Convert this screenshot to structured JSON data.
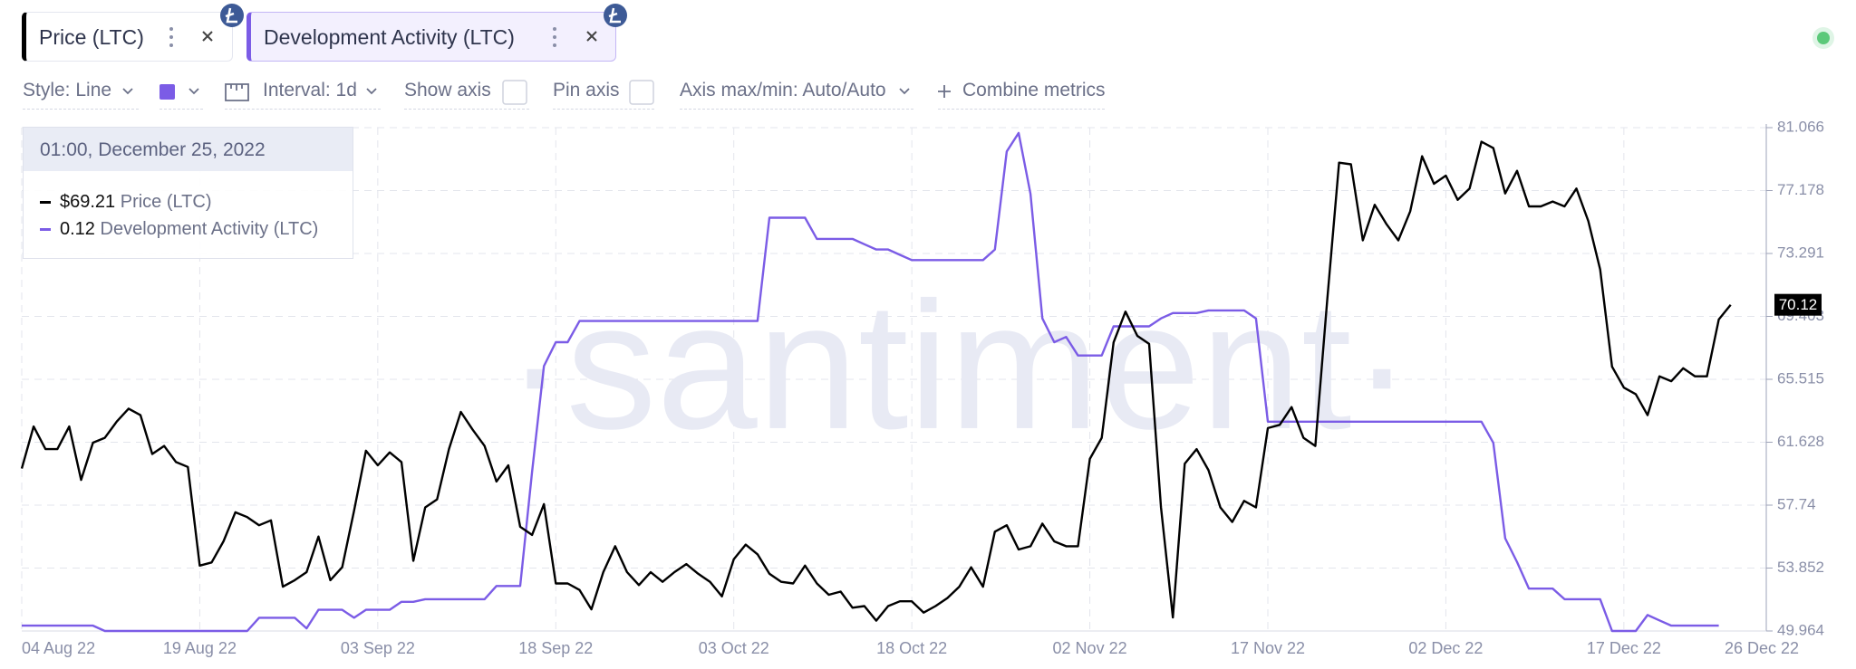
{
  "toolbar": {
    "style": "Style: Line",
    "interval": "Interval: 1d",
    "show_axis": "Show axis",
    "pin_axis": "Pin axis",
    "axis_range": "Axis max/min: Auto/Auto",
    "combine": "Combine metrics"
  },
  "watermark": "·santiment·",
  "tooltip": {
    "date": "01:00, December 25, 2022",
    "price_label": "$69.21"
  },
  "chart_data": {
    "type": "line",
    "x": [
      "2022-08-04",
      "2022-08-05",
      "2022-08-06",
      "2022-08-07",
      "2022-08-08",
      "2022-08-09",
      "2022-08-10",
      "2022-08-11",
      "2022-08-12",
      "2022-08-13",
      "2022-08-14",
      "2022-08-15",
      "2022-08-16",
      "2022-08-17",
      "2022-08-18",
      "2022-08-19",
      "2022-08-20",
      "2022-08-21",
      "2022-08-22",
      "2022-08-23",
      "2022-08-24",
      "2022-08-25",
      "2022-08-26",
      "2022-08-27",
      "2022-08-28",
      "2022-08-29",
      "2022-08-30",
      "2022-08-31",
      "2022-09-01",
      "2022-09-02",
      "2022-09-03",
      "2022-09-04",
      "2022-09-05",
      "2022-09-06",
      "2022-09-07",
      "2022-09-08",
      "2022-09-09",
      "2022-09-10",
      "2022-09-11",
      "2022-09-12",
      "2022-09-13",
      "2022-09-14",
      "2022-09-15",
      "2022-09-16",
      "2022-09-17",
      "2022-09-18",
      "2022-09-19",
      "2022-09-20",
      "2022-09-21",
      "2022-09-22",
      "2022-09-23",
      "2022-09-24",
      "2022-09-25",
      "2022-09-26",
      "2022-09-27",
      "2022-09-28",
      "2022-09-29",
      "2022-09-30",
      "2022-10-01",
      "2022-10-02",
      "2022-10-03",
      "2022-10-04",
      "2022-10-05",
      "2022-10-06",
      "2022-10-07",
      "2022-10-08",
      "2022-10-09",
      "2022-10-10",
      "2022-10-11",
      "2022-10-12",
      "2022-10-13",
      "2022-10-14",
      "2022-10-15",
      "2022-10-16",
      "2022-10-17",
      "2022-10-18",
      "2022-10-19",
      "2022-10-20",
      "2022-10-21",
      "2022-10-22",
      "2022-10-23",
      "2022-10-24",
      "2022-10-25",
      "2022-10-26",
      "2022-10-27",
      "2022-10-28",
      "2022-10-29",
      "2022-10-30",
      "2022-10-31",
      "2022-11-01",
      "2022-11-02",
      "2022-11-03",
      "2022-11-04",
      "2022-11-05",
      "2022-11-06",
      "2022-11-07",
      "2022-11-08",
      "2022-11-09",
      "2022-11-10",
      "2022-11-11",
      "2022-11-12",
      "2022-11-13",
      "2022-11-14",
      "2022-11-15",
      "2022-11-16",
      "2022-11-17",
      "2022-11-18",
      "2022-11-19",
      "2022-11-20",
      "2022-11-21",
      "2022-11-22",
      "2022-11-23",
      "2022-11-24",
      "2022-11-25",
      "2022-11-26",
      "2022-11-27",
      "2022-11-28",
      "2022-11-29",
      "2022-11-30",
      "2022-12-01",
      "2022-12-02",
      "2022-12-03",
      "2022-12-04",
      "2022-12-05",
      "2022-12-06",
      "2022-12-07",
      "2022-12-08",
      "2022-12-09",
      "2022-12-10",
      "2022-12-11",
      "2022-12-12",
      "2022-12-13",
      "2022-12-14",
      "2022-12-15",
      "2022-12-16",
      "2022-12-17",
      "2022-12-18",
      "2022-12-19",
      "2022-12-20",
      "2022-12-21",
      "2022-12-22",
      "2022-12-23",
      "2022-12-24",
      "2022-12-25",
      "2022-12-26"
    ],
    "series": [
      {
        "name": "Price (LTC)",
        "color": "#000000",
        "values": [
          60.0,
          62.6,
          61.2,
          61.2,
          62.6,
          59.3,
          61.6,
          61.9,
          62.9,
          63.7,
          63.3,
          60.9,
          61.4,
          60.4,
          60.1,
          54.0,
          54.2,
          55.5,
          57.3,
          57.0,
          56.5,
          56.8,
          52.7,
          53.1,
          53.6,
          55.8,
          53.1,
          53.9,
          57.4,
          61.1,
          60.2,
          61.0,
          60.4,
          54.3,
          57.6,
          58.1,
          61.2,
          63.5,
          62.4,
          61.4,
          59.2,
          60.2,
          56.4,
          55.9,
          57.8,
          52.9,
          52.9,
          52.5,
          51.3,
          53.6,
          55.2,
          53.6,
          52.8,
          53.6,
          53.0,
          53.6,
          54.1,
          53.5,
          53.0,
          52.1,
          54.4,
          55.3,
          54.7,
          53.5,
          53.0,
          52.9,
          54.0,
          52.9,
          52.2,
          52.4,
          51.4,
          51.5,
          50.6,
          51.5,
          51.8,
          51.8,
          51.1,
          51.5,
          52.0,
          52.7,
          53.9,
          52.7,
          56.1,
          56.5,
          55.0,
          55.2,
          56.6,
          55.5,
          55.2,
          55.2,
          60.6,
          61.9,
          67.8,
          69.7,
          68.2,
          67.7,
          57.6,
          50.8,
          60.3,
          61.2,
          59.9,
          57.6,
          56.7,
          58.0,
          57.6,
          62.5,
          62.7,
          63.8,
          61.9,
          61.4,
          70.4,
          78.9,
          78.8,
          74.1,
          76.3,
          75.1,
          74.1,
          75.9,
          79.3,
          77.6,
          78.1,
          76.6,
          77.3,
          80.2,
          79.8,
          77.0,
          78.4,
          76.2,
          76.2,
          76.5,
          76.2,
          77.3,
          75.3,
          72.3,
          66.3,
          65.0,
          64.6,
          63.3,
          65.7,
          65.4,
          66.2,
          65.7,
          65.7,
          69.21,
          70.12
        ]
      },
      {
        "name": "Development Activity (LTC)",
        "color": "#7b5ce6",
        "axis": "y2",
        "values": [
          0.12,
          0.12,
          0.12,
          0.12,
          0.12,
          0.12,
          0.12,
          0.1,
          0.1,
          0.1,
          0.1,
          0.1,
          0.1,
          0.1,
          0.1,
          0.1,
          0.1,
          0.1,
          0.1,
          0.1,
          0.15,
          0.15,
          0.15,
          0.15,
          0.11,
          0.18,
          0.18,
          0.18,
          0.15,
          0.18,
          0.18,
          0.18,
          0.21,
          0.21,
          0.22,
          0.22,
          0.22,
          0.22,
          0.22,
          0.22,
          0.27,
          0.27,
          0.27,
          0.7,
          1.1,
          1.19,
          1.19,
          1.27,
          1.27,
          1.27,
          1.27,
          1.27,
          1.27,
          1.27,
          1.27,
          1.27,
          1.27,
          1.27,
          1.27,
          1.27,
          1.27,
          1.27,
          1.27,
          1.66,
          1.66,
          1.66,
          1.66,
          1.58,
          1.58,
          1.58,
          1.58,
          1.56,
          1.54,
          1.54,
          1.52,
          1.5,
          1.5,
          1.5,
          1.5,
          1.5,
          1.5,
          1.5,
          1.54,
          1.91,
          1.98,
          1.75,
          1.28,
          1.19,
          1.21,
          1.14,
          1.14,
          1.14,
          1.25,
          1.25,
          1.25,
          1.25,
          1.28,
          1.3,
          1.3,
          1.3,
          1.31,
          1.31,
          1.31,
          1.31,
          1.28,
          0.89,
          0.89,
          0.89,
          0.89,
          0.89,
          0.89,
          0.89,
          0.89,
          0.89,
          0.89,
          0.89,
          0.89,
          0.89,
          0.89,
          0.89,
          0.89,
          0.89,
          0.89,
          0.89,
          0.81,
          0.45,
          0.36,
          0.26,
          0.26,
          0.26,
          0.22,
          0.22,
          0.22,
          0.22,
          0.1,
          0.1,
          0.1,
          0.16,
          0.14,
          0.12,
          0.12,
          0.12,
          0.12,
          0.12,
          null
        ]
      }
    ],
    "xlim": [
      "2022-08-04",
      "2022-12-29"
    ],
    "xticks": [
      {
        "value": "2022-08-04",
        "label": "04 Aug 22"
      },
      {
        "value": "2022-08-19",
        "label": "19 Aug 22"
      },
      {
        "value": "2022-09-03",
        "label": "03 Sep 22"
      },
      {
        "value": "2022-09-18",
        "label": "18 Sep 22"
      },
      {
        "value": "2022-10-03",
        "label": "03 Oct 22"
      },
      {
        "value": "2022-10-18",
        "label": "18 Oct 22"
      },
      {
        "value": "2022-11-02",
        "label": "02 Nov 22"
      },
      {
        "value": "2022-11-17",
        "label": "17 Nov 22"
      },
      {
        "value": "2022-12-02",
        "label": "02 Dec 22"
      },
      {
        "value": "2022-12-17",
        "label": "17 Dec 22"
      },
      {
        "value": "2022-12-26",
        "label": "26 Dec 22"
      }
    ],
    "ylim": [
      49.964,
      81.066
    ],
    "yticks": [
      49.964,
      53.852,
      57.74,
      61.628,
      65.515,
      69.403,
      73.291,
      77.178,
      81.066
    ],
    "y2lim": [
      0.1,
      2.0
    ],
    "grid": true
  }
}
